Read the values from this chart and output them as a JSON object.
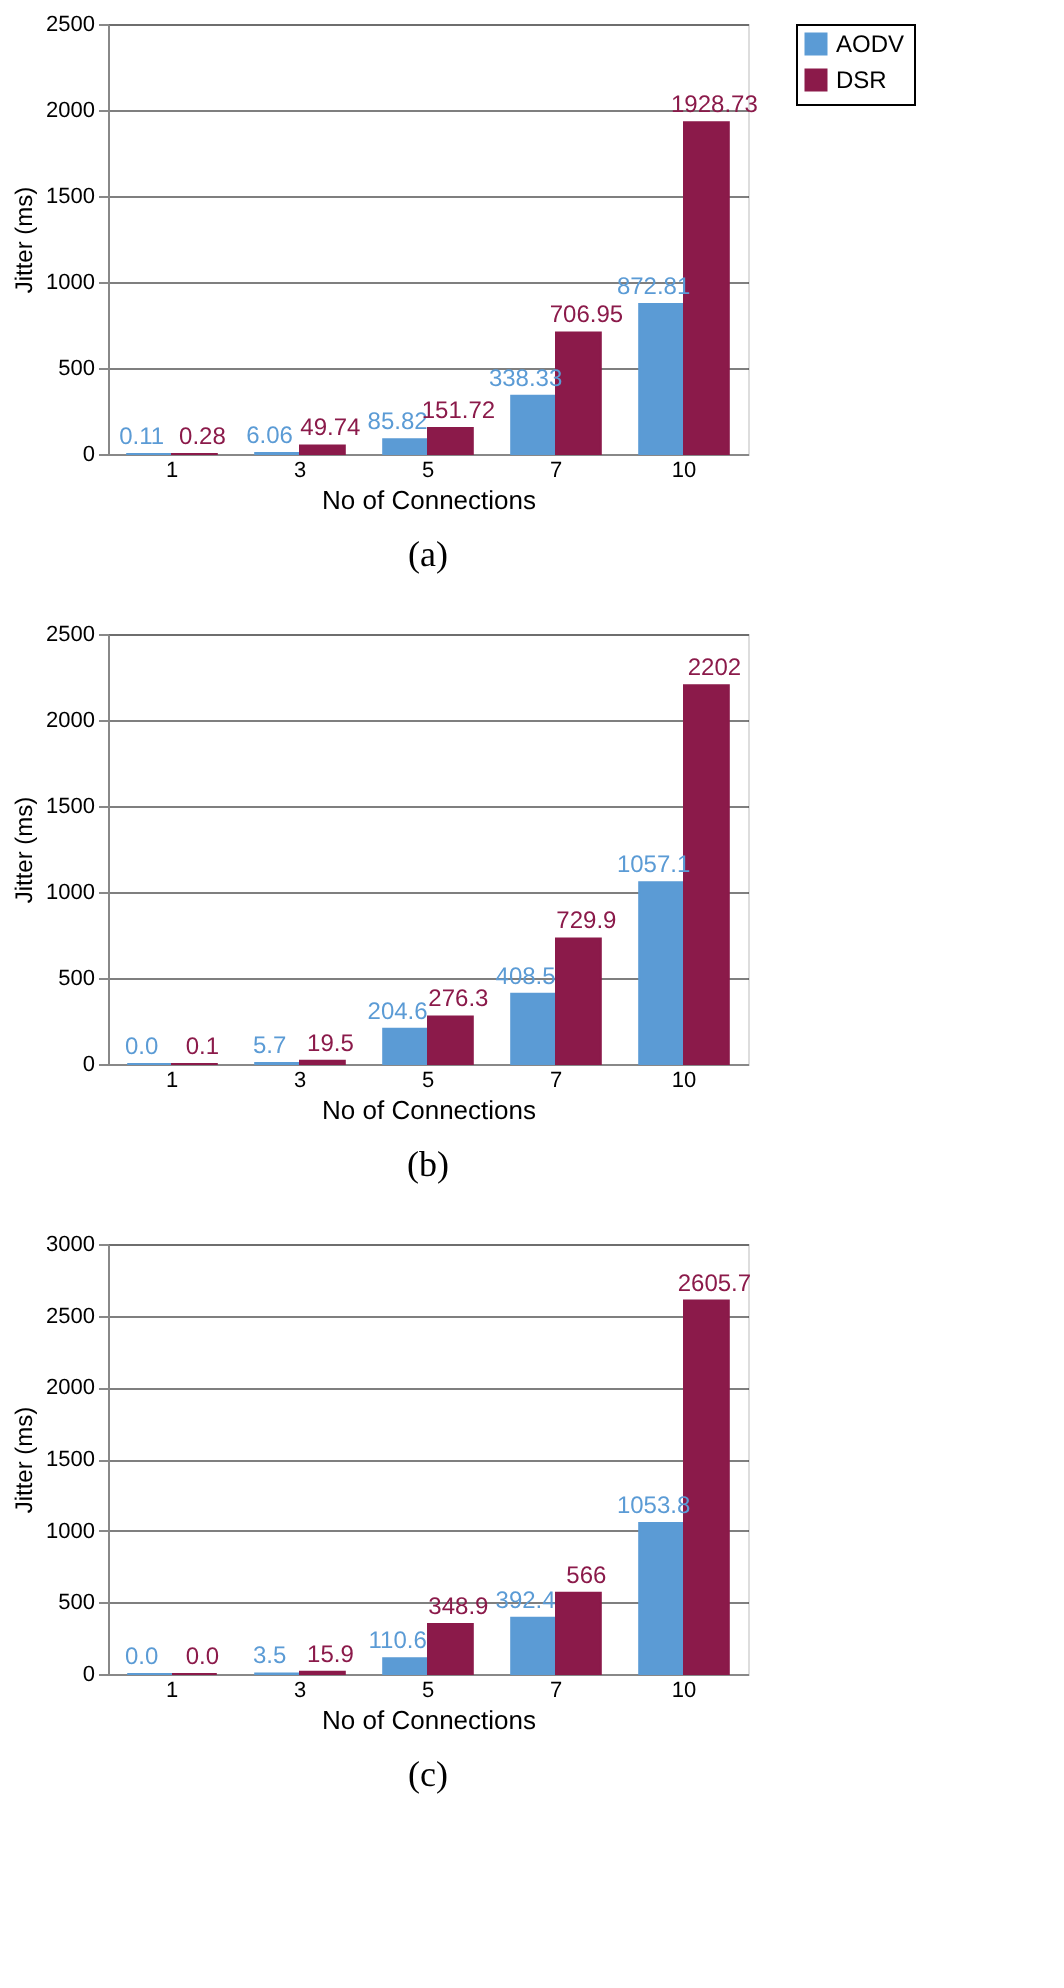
{
  "chart_data": [
    {
      "type": "bar",
      "categories": [
        "1",
        "3",
        "5",
        "7",
        "10"
      ],
      "xlabel": "No of Connections",
      "ylabel": "Jitter (ms)",
      "ylim": [
        0,
        2500
      ],
      "yticks": [
        0,
        500,
        1000,
        1500,
        2000,
        2500
      ],
      "grid": "y",
      "legend": "right",
      "annotations": [
        "(a)"
      ],
      "series": [
        {
          "name": "AODV",
          "color": "#5b9bd5",
          "values": [
            0.11,
            6.06,
            85.82,
            338.33,
            872.81
          ],
          "value_labels": [
            "0.11",
            "6.06",
            "85.82",
            "338.33",
            "872.81"
          ]
        },
        {
          "name": "DSR",
          "color": "#8b1a4a",
          "values": [
            0.28,
            49.74,
            151.72,
            706.95,
            1928.73
          ],
          "value_labels": [
            "0.28",
            "49.74",
            "151.72",
            "706.95",
            "1928.73"
          ]
        }
      ]
    },
    {
      "type": "bar",
      "categories": [
        "1",
        "3",
        "5",
        "7",
        "10"
      ],
      "xlabel": "No of Connections",
      "ylabel": "Jitter (ms)",
      "ylim": [
        0,
        2500
      ],
      "yticks": [
        0,
        500,
        1000,
        1500,
        2000,
        2500
      ],
      "grid": "y",
      "legend": "right",
      "annotations": [
        "(b)"
      ],
      "series": [
        {
          "name": "AODV",
          "color": "#5b9bd5",
          "values": [
            0.0,
            5.7,
            204.6,
            408.5,
            1057.1
          ],
          "value_labels": [
            "0.0",
            "5.7",
            "204.6",
            "408.5",
            "1057.1"
          ]
        },
        {
          "name": "DSR",
          "color": "#8b1a4a",
          "values": [
            0.1,
            19.5,
            276.3,
            729.9,
            2202
          ],
          "value_labels": [
            "0.1",
            "19.5",
            "276.3",
            "729.9",
            "2202"
          ]
        }
      ]
    },
    {
      "type": "bar",
      "categories": [
        "1",
        "3",
        "5",
        "7",
        "10"
      ],
      "xlabel": "No of Connections",
      "ylabel": "Jitter (ms)",
      "ylim": [
        0,
        3000
      ],
      "yticks": [
        0,
        500,
        1000,
        1500,
        2000,
        2500,
        3000
      ],
      "grid": "y",
      "legend": "right",
      "annotations": [
        "(c)"
      ],
      "series": [
        {
          "name": "AODV",
          "color": "#5b9bd5",
          "values": [
            0.0,
            3.5,
            110.6,
            392.4,
            1053.8
          ],
          "value_labels": [
            "0.0",
            "3.5",
            "110.6",
            "392.4",
            "1053.8"
          ]
        },
        {
          "name": "DSR",
          "color": "#8b1a4a",
          "values": [
            0.0,
            15.9,
            348.9,
            566,
            2605.7
          ],
          "value_labels": [
            "0.0",
            "15.9",
            "348.9",
            "566",
            "2605.7"
          ]
        }
      ]
    }
  ]
}
